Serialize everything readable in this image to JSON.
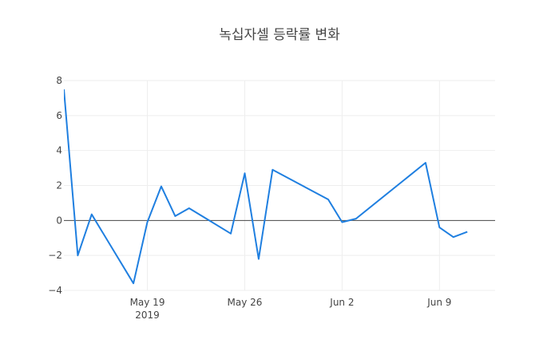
{
  "chart_data": {
    "type": "line",
    "title": "녹십자셀 등락률 변화",
    "xlabel": "",
    "ylabel": "",
    "ylim": [
      -4,
      8
    ],
    "xlim": [
      "2019-05-13",
      "2019-06-13"
    ],
    "grid": true,
    "legend": "none",
    "zero_line": true,
    "line_color": "#1f7fe0",
    "x_ticks": [
      {
        "date": "2019-05-19",
        "label": "May 19",
        "sublabel": "2019"
      },
      {
        "date": "2019-05-26",
        "label": "May 26",
        "sublabel": ""
      },
      {
        "date": "2019-06-02",
        "label": "Jun 2",
        "sublabel": ""
      },
      {
        "date": "2019-06-09",
        "label": "Jun 9",
        "sublabel": ""
      }
    ],
    "y_ticks": [
      -4,
      -2,
      0,
      2,
      4,
      6,
      8
    ],
    "series": [
      {
        "x": [
          "2019-05-13",
          "2019-05-14",
          "2019-05-15",
          "2019-05-18",
          "2019-05-19",
          "2019-05-20",
          "2019-05-21",
          "2019-05-22",
          "2019-05-25",
          "2019-05-26",
          "2019-05-27",
          "2019-05-28",
          "2019-06-01",
          "2019-06-02",
          "2019-06-03",
          "2019-06-08",
          "2019-06-09",
          "2019-06-10",
          "2019-06-11"
        ],
        "values": [
          7.5,
          -2.0,
          0.35,
          -3.6,
          -0.1,
          1.95,
          0.25,
          0.7,
          -0.75,
          2.7,
          -2.2,
          2.9,
          1.2,
          -0.1,
          0.1,
          3.3,
          -0.4,
          -0.95,
          -0.65
        ]
      }
    ]
  }
}
